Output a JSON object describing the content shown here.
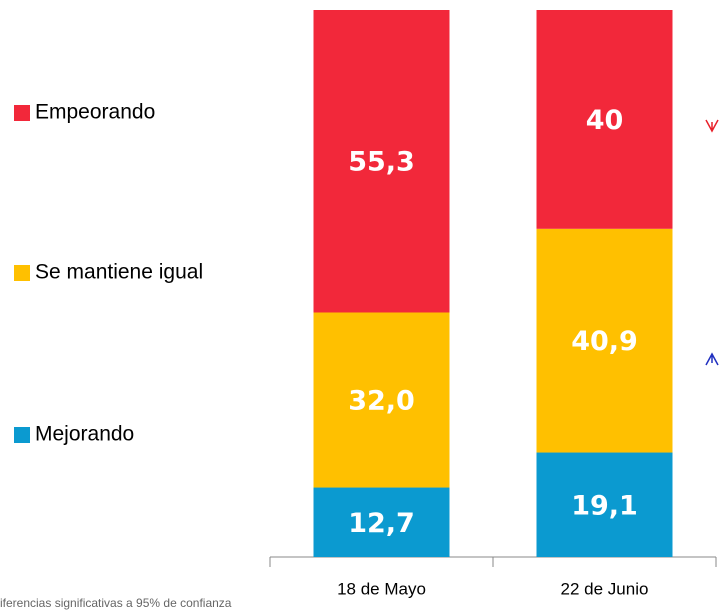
{
  "chart_data": {
    "type": "stacked_bar",
    "categories": [
      "18 de Mayo",
      "22 de Junio"
    ],
    "series": [
      {
        "name": "Mejorando",
        "color": "#0b9ad0",
        "values": [
          12.7,
          19.1
        ],
        "value_labels": [
          "12,7",
          "19,1"
        ]
      },
      {
        "name": "Se mantiene igual",
        "color": "#ffc000",
        "values": [
          32.0,
          40.9
        ],
        "value_labels": [
          "32,0",
          "40,9"
        ]
      },
      {
        "name": "Empeorando",
        "color": "#f2283a",
        "values": [
          55.3,
          40
        ],
        "value_labels": [
          "55,3",
          "40"
        ]
      }
    ],
    "ylim": [
      0,
      100
    ],
    "footnote": "iferencias  significativas a 95% de confianza"
  }
}
